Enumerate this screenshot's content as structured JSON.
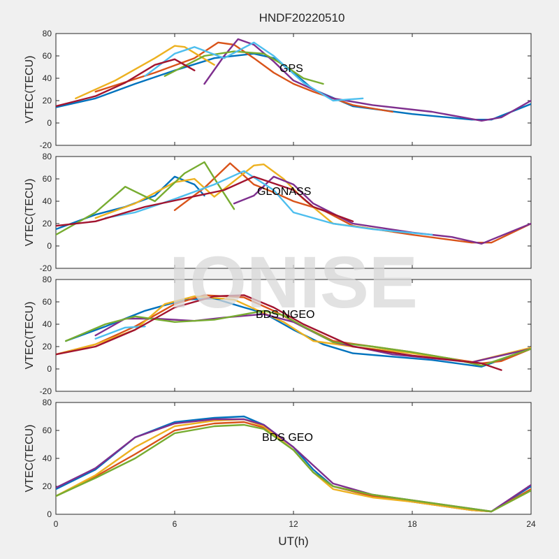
{
  "figure": {
    "title": "HNDF20220510",
    "watermark": "IONISE",
    "xlabel": "UT(h)"
  },
  "chart_data": [
    {
      "type": "line",
      "annotation": "GPS",
      "ylabel": "VTEC(TECU)",
      "xlim": [
        0,
        24
      ],
      "ylim": [
        -20,
        80
      ],
      "xticks": [
        0,
        6,
        12,
        18,
        24
      ],
      "yticks": [
        -20,
        0,
        20,
        40,
        60,
        80
      ],
      "colors": [
        "#0072bd",
        "#d95319",
        "#edb120",
        "#7e2f8e",
        "#77ac30",
        "#4dbeee",
        "#a2142f"
      ],
      "series": [
        {
          "x": [
            0,
            2,
            4,
            6,
            8,
            10,
            11,
            12,
            13,
            15,
            18,
            21,
            22,
            24
          ],
          "y": [
            14,
            22,
            35,
            47,
            58,
            62,
            58,
            45,
            30,
            15,
            8,
            3,
            3,
            17
          ]
        },
        {
          "x": [
            2,
            5,
            7,
            8.2,
            9,
            10,
            11,
            12,
            13,
            15,
            17
          ],
          "y": [
            28,
            45,
            58,
            72,
            70,
            58,
            45,
            35,
            28,
            16,
            10
          ]
        },
        {
          "x": [
            1,
            3,
            5,
            6,
            6.5,
            8
          ],
          "y": [
            22,
            38,
            58,
            69,
            68,
            52
          ]
        },
        {
          "x": [
            7.5,
            8.5,
            9.2,
            10,
            11,
            12,
            14,
            16,
            19,
            21.5,
            22.5,
            24
          ],
          "y": [
            35,
            60,
            75,
            70,
            55,
            38,
            22,
            16,
            10,
            2,
            5,
            20
          ]
        },
        {
          "x": [
            5.5,
            7.5,
            9,
            10.5,
            11.5,
            12.5,
            13.5
          ],
          "y": [
            42,
            60,
            64,
            62,
            52,
            40,
            35
          ]
        },
        {
          "x": [
            4.5,
            6,
            7,
            8.5,
            10,
            11,
            12.5,
            14,
            15.5
          ],
          "y": [
            42,
            62,
            68,
            58,
            72,
            60,
            36,
            20,
            22
          ]
        },
        {
          "x": [
            0,
            2,
            3.5,
            5,
            6,
            7
          ],
          "y": [
            15,
            24,
            36,
            52,
            57,
            47
          ]
        }
      ]
    },
    {
      "type": "line",
      "annotation": "GLONASS",
      "ylabel": "VTEC(TECU)",
      "xlim": [
        0,
        24
      ],
      "ylim": [
        -20,
        80
      ],
      "xticks": [
        0,
        6,
        12,
        18,
        24
      ],
      "yticks": [
        -20,
        0,
        20,
        40,
        60,
        80
      ],
      "colors": [
        "#0072bd",
        "#d95319",
        "#edb120",
        "#7e2f8e",
        "#77ac30",
        "#4dbeee",
        "#a2142f"
      ],
      "series": [
        {
          "x": [
            0,
            2,
            3.5,
            5,
            6,
            7,
            7.5
          ],
          "y": [
            15,
            28,
            35,
            45,
            62,
            55,
            45
          ]
        },
        {
          "x": [
            6,
            7.5,
            8.8,
            10,
            11,
            12,
            13.5,
            15,
            18,
            21,
            22,
            24
          ],
          "y": [
            32,
            52,
            74,
            55,
            48,
            40,
            32,
            18,
            10,
            3,
            3,
            20
          ]
        },
        {
          "x": [
            2,
            4,
            6,
            7,
            8,
            10,
            10.5,
            11.5,
            12.5,
            14,
            17
          ],
          "y": [
            25,
            38,
            57,
            60,
            44,
            72,
            73,
            60,
            42,
            20,
            13
          ]
        },
        {
          "x": [
            9,
            10,
            11,
            12,
            13,
            15,
            18,
            20,
            21.5,
            24
          ],
          "y": [
            38,
            45,
            62,
            55,
            38,
            20,
            12,
            8,
            2,
            20
          ]
        },
        {
          "x": [
            0,
            2,
            3.5,
            5,
            6.5,
            7.5,
            8.2,
            9
          ],
          "y": [
            10,
            30,
            53,
            40,
            65,
            75,
            55,
            33
          ]
        },
        {
          "x": [
            2.5,
            4,
            6,
            8,
            9.5,
            11,
            12,
            14,
            16,
            19
          ],
          "y": [
            25,
            30,
            42,
            55,
            67,
            50,
            30,
            20,
            15,
            10
          ]
        },
        {
          "x": [
            0,
            2,
            4.5,
            8.5,
            10,
            12,
            13,
            15
          ],
          "y": [
            18,
            22,
            35,
            50,
            62,
            50,
            35,
            22
          ]
        }
      ]
    },
    {
      "type": "line",
      "annotation": "BDS NGEO",
      "ylabel": "VTEC(TECU)",
      "xlim": [
        0,
        24
      ],
      "ylim": [
        -20,
        80
      ],
      "xticks": [
        0,
        6,
        12,
        18,
        24
      ],
      "yticks": [
        -20,
        0,
        20,
        40,
        60,
        80
      ],
      "colors": [
        "#0072bd",
        "#d95319",
        "#edb120",
        "#7e2f8e",
        "#77ac30",
        "#4dbeee",
        "#a2142f"
      ],
      "series": [
        {
          "x": [
            0.5,
            2.5,
            4.5,
            6.5,
            8,
            9.5,
            10.5,
            12,
            13.5,
            15,
            17,
            19,
            21.5,
            24
          ],
          "y": [
            25,
            38,
            52,
            62,
            63,
            55,
            50,
            35,
            22,
            14,
            11,
            8,
            2,
            18
          ]
        },
        {
          "x": [
            0,
            2,
            4,
            6,
            7.5,
            9.5,
            11,
            12.5,
            14,
            16,
            18,
            20,
            21.5,
            22.5,
            24
          ],
          "y": [
            13,
            22,
            38,
            58,
            66,
            64,
            52,
            38,
            25,
            20,
            15,
            9,
            5,
            7,
            18
          ]
        },
        {
          "x": [
            0,
            2,
            4,
            5.5,
            7,
            9,
            10.5,
            11.5,
            13,
            15,
            18,
            21,
            24
          ],
          "y": [
            13,
            22,
            35,
            58,
            65,
            62,
            50,
            42,
            25,
            20,
            14,
            6,
            19
          ]
        },
        {
          "x": [
            2,
            3.5,
            5,
            7,
            8.5,
            10.5,
            12,
            14,
            17,
            21,
            24
          ],
          "y": [
            30,
            45,
            45,
            43,
            46,
            49,
            42,
            24,
            13,
            6,
            18
          ]
        },
        {
          "x": [
            0.5,
            2.5,
            4,
            6,
            8,
            10.5,
            11.5,
            12.5,
            14,
            16,
            18,
            20,
            21.5,
            24
          ],
          "y": [
            25,
            40,
            47,
            42,
            44,
            52,
            48,
            38,
            24,
            20,
            15,
            9,
            3,
            18
          ]
        },
        {
          "x": [
            2,
            3.5,
            4.5
          ],
          "y": [
            27,
            37,
            38
          ]
        },
        {
          "x": [
            0,
            2,
            4,
            6,
            8,
            9.5,
            11,
            12.5,
            15,
            18,
            21.5,
            22.5
          ],
          "y": [
            13,
            20,
            35,
            55,
            65,
            66,
            55,
            40,
            20,
            12,
            5,
            -1
          ]
        }
      ]
    },
    {
      "type": "line",
      "annotation": "BDS GEO",
      "ylabel": "VTEC(TECU)",
      "xlim": [
        0,
        24
      ],
      "ylim": [
        0,
        80
      ],
      "xticks": [
        0,
        6,
        12,
        18,
        24
      ],
      "xticklabels": [
        "0",
        "6",
        "12",
        "18",
        "24"
      ],
      "yticks": [
        0,
        20,
        40,
        60,
        80
      ],
      "colors": [
        "#0072bd",
        "#d95319",
        "#edb120",
        "#7e2f8e",
        "#77ac30",
        "#4dbeee",
        "#a2142f"
      ],
      "series": [
        {
          "x": [
            0,
            2,
            4,
            6,
            8,
            9.5,
            10.5,
            12,
            13,
            14,
            16,
            18,
            21,
            22,
            24
          ],
          "y": [
            18,
            32,
            55,
            66,
            69,
            70,
            64,
            48,
            32,
            20,
            13,
            9,
            3,
            2,
            20
          ]
        },
        {
          "x": [
            0,
            2,
            4,
            6,
            8,
            9.5,
            10.5,
            12,
            13,
            14,
            16,
            18,
            21,
            22,
            24
          ],
          "y": [
            13,
            27,
            43,
            60,
            65,
            66,
            62,
            46,
            30,
            20,
            13,
            9,
            3,
            2,
            18
          ]
        },
        {
          "x": [
            0,
            2,
            4,
            6,
            8,
            9.5,
            10.5,
            12,
            13,
            14,
            16,
            18,
            21,
            22,
            24
          ],
          "y": [
            13,
            28,
            48,
            63,
            67,
            68,
            63,
            46,
            30,
            18,
            12,
            9,
            3,
            2,
            17
          ]
        },
        {
          "x": [
            0,
            2,
            4,
            6,
            8,
            9.5,
            10.5,
            12,
            13,
            14,
            16,
            18,
            21,
            22,
            24
          ],
          "y": [
            19,
            33,
            55,
            65,
            68,
            68,
            64,
            48,
            35,
            22,
            14,
            10,
            4,
            2,
            21
          ]
        },
        {
          "x": [
            0,
            2,
            4,
            6,
            8,
            9.5,
            10.5,
            12,
            13,
            14,
            16,
            18,
            21,
            22,
            24
          ],
          "y": [
            13,
            26,
            40,
            58,
            63,
            64,
            61,
            46,
            30,
            20,
            14,
            10,
            4,
            2,
            17
          ]
        }
      ]
    }
  ]
}
